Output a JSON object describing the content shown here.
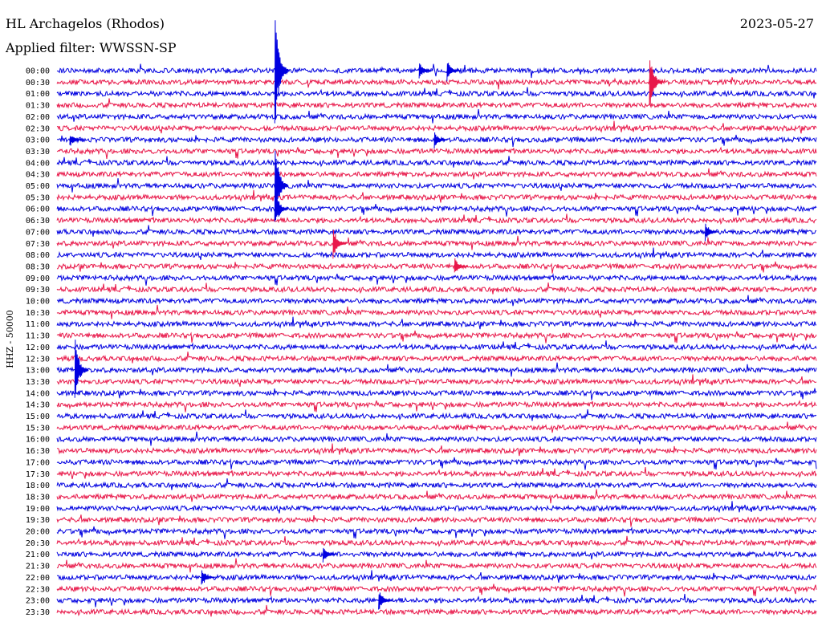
{
  "header": {
    "station": "HL Archagelos (Rhodos)",
    "date": "2023-05-27",
    "filter": "Applied filter: WWSSN-SP"
  },
  "chart_data": {
    "type": "seismogram",
    "channel_label": "HHZ - 50000",
    "colors": [
      "#0000e0",
      "#e8184a"
    ],
    "row_labels": [
      "00:00",
      "00:30",
      "01:00",
      "01:30",
      "02:00",
      "02:30",
      "03:00",
      "03:30",
      "04:00",
      "04:30",
      "05:00",
      "05:30",
      "06:00",
      "06:30",
      "07:00",
      "07:30",
      "08:00",
      "08:30",
      "09:00",
      "09:30",
      "10:00",
      "10:30",
      "11:00",
      "11:30",
      "12:00",
      "12:30",
      "13:00",
      "13:30",
      "14:00",
      "14:30",
      "15:00",
      "15:30",
      "16:00",
      "16:30",
      "17:00",
      "17:30",
      "18:00",
      "18:30",
      "19:00",
      "19:30",
      "20:00",
      "20:30",
      "21:00",
      "21:30",
      "22:00",
      "22:30",
      "23:00",
      "23:30"
    ],
    "events": [
      {
        "row": 0,
        "minute": 14.4,
        "amp": 12
      },
      {
        "row": 0,
        "minute": 15.5,
        "amp": 16
      },
      {
        "row": 0,
        "minute": 8.7,
        "amp": 90
      },
      {
        "row": 1,
        "minute": 23.5,
        "amp": 40
      },
      {
        "row": 6,
        "minute": 15.0,
        "amp": 12
      },
      {
        "row": 6,
        "minute": 0.6,
        "amp": 10
      },
      {
        "row": 10,
        "minute": 8.7,
        "amp": 60
      },
      {
        "row": 12,
        "minute": 8.7,
        "amp": 30
      },
      {
        "row": 14,
        "minute": 25.7,
        "amp": 14
      },
      {
        "row": 15,
        "minute": 11.0,
        "amp": 22
      },
      {
        "row": 17,
        "minute": 15.8,
        "amp": 12
      },
      {
        "row": 26,
        "minute": 0.8,
        "amp": 45
      },
      {
        "row": 42,
        "minute": 10.6,
        "amp": 12
      },
      {
        "row": 44,
        "minute": 5.8,
        "amp": 14
      },
      {
        "row": 46,
        "minute": 12.8,
        "amp": 16
      }
    ]
  }
}
